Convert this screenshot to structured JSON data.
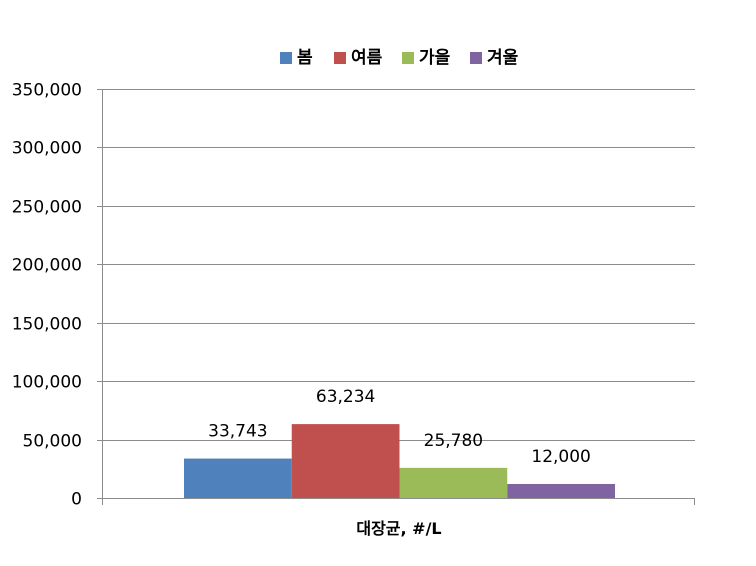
{
  "chart_data": {
    "type": "bar",
    "xlabel": "대장균, #/L",
    "ylabel": "",
    "ylim": [
      0,
      350000
    ],
    "yticks": [
      0,
      50000,
      100000,
      150000,
      200000,
      250000,
      300000,
      350000
    ],
    "ytick_labels": [
      "0",
      "50,000",
      "100,000",
      "150,000",
      "200,000",
      "250,000",
      "300,000",
      "350,000"
    ],
    "grid": true,
    "legend_position": "top",
    "series": [
      {
        "name": "봄",
        "value": 33743,
        "label": "33,743",
        "color": "#4f81bd"
      },
      {
        "name": "여름",
        "value": 63234,
        "label": "63,234",
        "color": "#c0504d"
      },
      {
        "name": "가을",
        "value": 25780,
        "label": "25,780",
        "color": "#9bbb59"
      },
      {
        "name": "겨울",
        "value": 12000,
        "label": "12,000",
        "color": "#8064a2"
      }
    ]
  }
}
